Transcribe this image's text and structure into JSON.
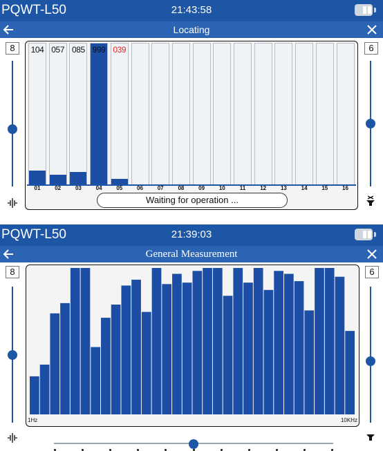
{
  "screen1": {
    "device_name": "PQWT-L50",
    "time": "21:43:58",
    "title": "Locating",
    "left_value": "8",
    "right_value": "6",
    "left_slider_level": 0.45,
    "right_slider_level": 0.5,
    "status_text": "Waiting for operation ...",
    "channels": [
      {
        "label": "01",
        "value": "104",
        "fill": 0.1,
        "value_color": "black"
      },
      {
        "label": "02",
        "value": "057",
        "fill": 0.07,
        "value_color": "black"
      },
      {
        "label": "03",
        "value": "085",
        "fill": 0.09,
        "value_color": "black"
      },
      {
        "label": "04",
        "value": "999",
        "fill": 1.0,
        "value_color": "black"
      },
      {
        "label": "05",
        "value": "039",
        "fill": 0.04,
        "value_color": "red"
      },
      {
        "label": "06",
        "value": "",
        "fill": 0
      },
      {
        "label": "07",
        "value": "",
        "fill": 0
      },
      {
        "label": "08",
        "value": "",
        "fill": 0
      },
      {
        "label": "09",
        "value": "",
        "fill": 0
      },
      {
        "label": "10",
        "value": "",
        "fill": 0
      },
      {
        "label": "11",
        "value": "",
        "fill": 0
      },
      {
        "label": "12",
        "value": "",
        "fill": 0
      },
      {
        "label": "13",
        "value": "",
        "fill": 0
      },
      {
        "label": "14",
        "value": "",
        "fill": 0
      },
      {
        "label": "15",
        "value": "",
        "fill": 0
      },
      {
        "label": "16",
        "value": "",
        "fill": 0
      }
    ]
  },
  "screen2": {
    "device_name": "PQWT-L50",
    "time": "21:39:03",
    "title": "General Measurement",
    "left_value": "8",
    "right_value": "6",
    "left_slider_level": 0.5,
    "right_slider_level": 0.45,
    "bottom_slider_level": 0.5,
    "bottom_slider_stops": 11,
    "x_min_label": "1Hz",
    "x_max_label": "10KHz"
  },
  "chart_data": {
    "type": "bar",
    "xlabel": "",
    "ylabel": "",
    "x_range": [
      "1Hz",
      "10KHz"
    ],
    "ylim": [
      0,
      100
    ],
    "grid": false,
    "values": [
      26,
      34,
      69,
      76,
      100,
      100,
      46,
      66,
      75,
      88,
      92,
      70,
      100,
      89,
      96,
      90,
      98,
      100,
      100,
      81,
      100,
      90,
      100,
      85,
      98,
      96,
      91,
      71,
      100,
      100,
      94,
      57
    ]
  },
  "colors": {
    "header": "#1c56a5",
    "titlebar": "#2a64b3",
    "bar": "#1c4ea6",
    "value_red": "#e02626"
  },
  "icons": {
    "back": "left-arrow-icon",
    "close": "close-x-icon",
    "battery": "battery-icon",
    "left_tool": "waveform-icon",
    "right_tool_top": "filter-icon",
    "right_tool_bottom": "filter-icon"
  }
}
